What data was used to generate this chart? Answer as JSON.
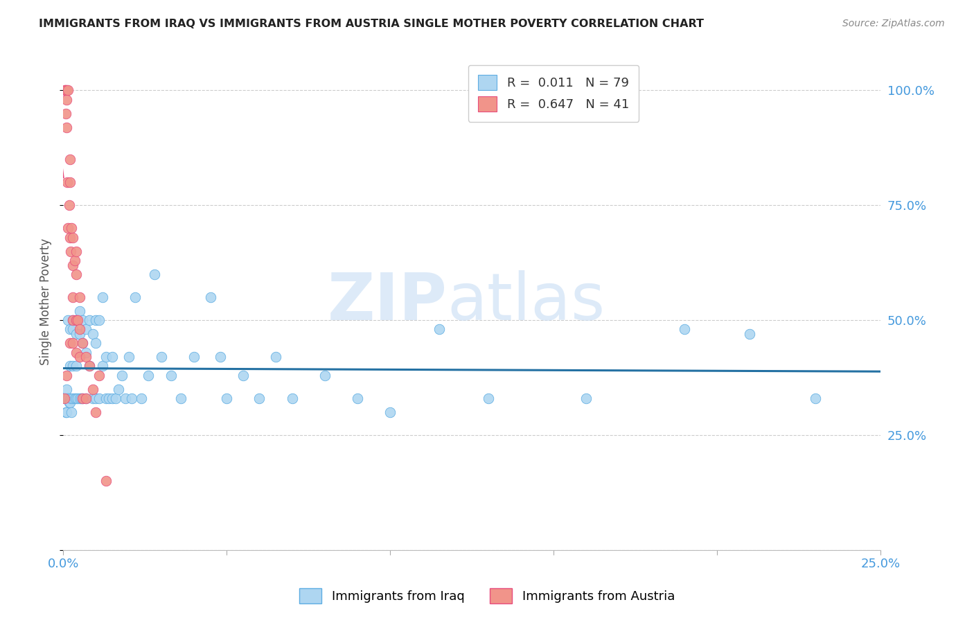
{
  "title": "IMMIGRANTS FROM IRAQ VS IMMIGRANTS FROM AUSTRIA SINGLE MOTHER POVERTY CORRELATION CHART",
  "source": "Source: ZipAtlas.com",
  "ylabel": "Single Mother Poverty",
  "y_ticks": [
    0.0,
    0.25,
    0.5,
    0.75,
    1.0
  ],
  "y_tick_labels": [
    "",
    "25.0%",
    "50.0%",
    "75.0%",
    "100.0%"
  ],
  "x_range": [
    0.0,
    0.25
  ],
  "y_range": [
    0.0,
    1.08
  ],
  "iraq_R": 0.011,
  "iraq_N": 79,
  "austria_R": 0.647,
  "austria_N": 41,
  "iraq_color": "#aed6f1",
  "austria_color": "#f1948a",
  "iraq_edge_color": "#5dade2",
  "austria_edge_color": "#e74c7c",
  "iraq_line_color": "#2471a3",
  "austria_line_color": "#e74c7c",
  "legend_iraq_label": "Immigrants from Iraq",
  "legend_austria_label": "Immigrants from Austria",
  "watermark_zip": "ZIP",
  "watermark_atlas": "atlas",
  "iraq_x": [
    0.0005,
    0.0008,
    0.001,
    0.001,
    0.0012,
    0.0015,
    0.0015,
    0.0018,
    0.002,
    0.002,
    0.002,
    0.0022,
    0.0025,
    0.003,
    0.003,
    0.003,
    0.003,
    0.0035,
    0.004,
    0.004,
    0.004,
    0.004,
    0.0045,
    0.005,
    0.005,
    0.005,
    0.0055,
    0.006,
    0.006,
    0.006,
    0.007,
    0.007,
    0.007,
    0.008,
    0.008,
    0.009,
    0.009,
    0.01,
    0.01,
    0.01,
    0.011,
    0.011,
    0.012,
    0.012,
    0.013,
    0.013,
    0.014,
    0.015,
    0.015,
    0.016,
    0.017,
    0.018,
    0.019,
    0.02,
    0.021,
    0.022,
    0.024,
    0.026,
    0.028,
    0.03,
    0.033,
    0.036,
    0.04,
    0.045,
    0.048,
    0.05,
    0.055,
    0.06,
    0.065,
    0.07,
    0.08,
    0.09,
    0.1,
    0.115,
    0.13,
    0.16,
    0.19,
    0.21,
    0.23
  ],
  "iraq_y": [
    0.33,
    0.3,
    0.35,
    0.3,
    0.33,
    0.5,
    0.33,
    0.32,
    0.48,
    0.4,
    0.32,
    0.33,
    0.3,
    0.5,
    0.48,
    0.4,
    0.33,
    0.33,
    0.5,
    0.47,
    0.4,
    0.33,
    0.33,
    0.52,
    0.47,
    0.33,
    0.33,
    0.5,
    0.45,
    0.33,
    0.48,
    0.43,
    0.33,
    0.5,
    0.4,
    0.47,
    0.33,
    0.5,
    0.45,
    0.33,
    0.5,
    0.33,
    0.55,
    0.4,
    0.42,
    0.33,
    0.33,
    0.42,
    0.33,
    0.33,
    0.35,
    0.38,
    0.33,
    0.42,
    0.33,
    0.55,
    0.33,
    0.38,
    0.6,
    0.42,
    0.38,
    0.33,
    0.42,
    0.55,
    0.42,
    0.33,
    0.38,
    0.33,
    0.42,
    0.33,
    0.38,
    0.33,
    0.3,
    0.48,
    0.33,
    0.33,
    0.48,
    0.47,
    0.33
  ],
  "austria_x": [
    0.0003,
    0.0005,
    0.0006,
    0.0008,
    0.001,
    0.001,
    0.001,
    0.001,
    0.0012,
    0.0015,
    0.0015,
    0.0018,
    0.002,
    0.002,
    0.002,
    0.002,
    0.0022,
    0.0025,
    0.003,
    0.003,
    0.003,
    0.003,
    0.003,
    0.0035,
    0.004,
    0.004,
    0.004,
    0.004,
    0.0045,
    0.005,
    0.005,
    0.005,
    0.006,
    0.006,
    0.007,
    0.007,
    0.008,
    0.009,
    0.01,
    0.011,
    0.013
  ],
  "austria_y": [
    0.33,
    1.0,
    1.0,
    0.95,
    1.0,
    0.98,
    0.92,
    0.38,
    0.8,
    1.0,
    0.7,
    0.75,
    0.85,
    0.8,
    0.68,
    0.45,
    0.65,
    0.7,
    0.68,
    0.62,
    0.55,
    0.5,
    0.45,
    0.63,
    0.65,
    0.6,
    0.5,
    0.43,
    0.5,
    0.55,
    0.48,
    0.42,
    0.45,
    0.33,
    0.42,
    0.33,
    0.4,
    0.35,
    0.3,
    0.38,
    0.15
  ],
  "austria_line_x_start": 0.0,
  "austria_line_x_end": 0.013
}
